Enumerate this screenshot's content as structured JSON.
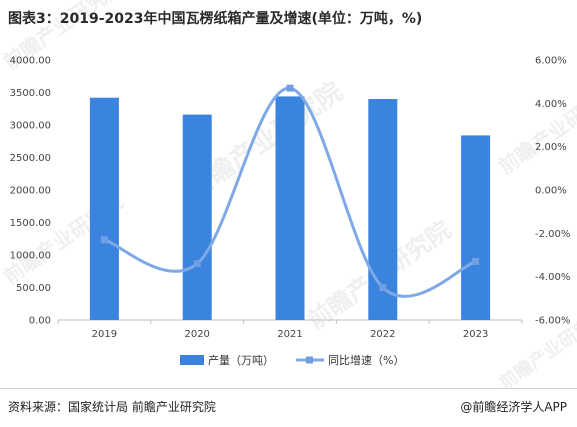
{
  "title": "图表3：2019-2023年中国瓦楞纸箱产量及增速(单位：万吨，%)",
  "footer": {
    "source": "资料来源：国家统计局 前瞻产业研究院",
    "brand": "@前瞻经济学人APP"
  },
  "watermark": "前瞻产业研究院",
  "colors": {
    "bar": "#3a84e0",
    "line": "#7ea9e6",
    "marker": "#6f9fe2"
  },
  "chart_data": {
    "type": "bar",
    "categories": [
      "2019",
      "2020",
      "2021",
      "2022",
      "2023"
    ],
    "series": [
      {
        "name": "产量（万吨）",
        "type": "bar",
        "axis": "left",
        "values": [
          3420,
          3160,
          3440,
          3400,
          2840
        ]
      },
      {
        "name": "同比增速（%）",
        "type": "line",
        "smooth": true,
        "axis": "right",
        "values": [
          -2.3,
          -3.4,
          4.7,
          -4.5,
          -3.3
        ]
      }
    ],
    "left_axis": {
      "min": 0,
      "max": 4000,
      "step": 500,
      "tick_labels": [
        "0.00",
        "500.00",
        "1000.00",
        "1500.00",
        "2000.00",
        "2500.00",
        "3000.00",
        "3500.00",
        "4000.00"
      ]
    },
    "right_axis": {
      "min": -6,
      "max": 6,
      "step": 2,
      "tick_labels": [
        "-6.00%",
        "-4.00%",
        "-2.00%",
        "0.00%",
        "2.00%",
        "4.00%",
        "6.00%"
      ]
    },
    "legend": [
      "产量（万吨）",
      "同比增速（%）"
    ],
    "legend_position": "bottom",
    "grid": false
  }
}
